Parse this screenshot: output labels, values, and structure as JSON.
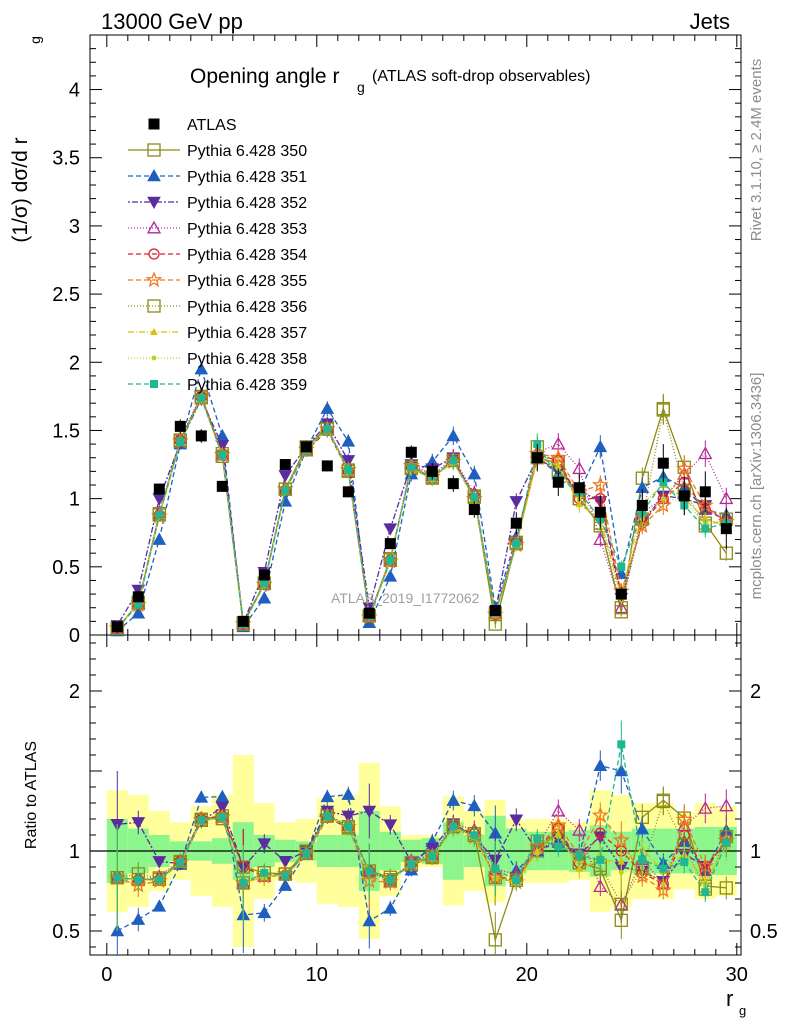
{
  "header": {
    "left": "13000 GeV pp",
    "right": "Jets"
  },
  "side_texts": {
    "rivet": "Rivet 3.1.10, ≥ 2.4M events",
    "mcplots": "mcplots.cern.ch [arXiv:1306.3436]"
  },
  "watermark": "ATLAS_2019_I1772062",
  "chart_data": {
    "type": "scatter",
    "title_main": "Opening angle r",
    "title_sub": "g",
    "title_paren": "(ATLAS soft-drop observables)",
    "ylabel": "(1/σ) dσ/d r",
    "ylabel_sub": "g",
    "ratio_ylabel": "Ratio to ATLAS",
    "xlabel": "r",
    "xlabel_sub": "g",
    "xlim": [
      -0.8,
      30.2
    ],
    "ylim": [
      0,
      4.4
    ],
    "ratio_ylim": [
      0.35,
      2.35
    ],
    "xticks": [
      0,
      10,
      20,
      30
    ],
    "yticks": [
      0,
      0.5,
      1,
      1.5,
      2,
      2.5,
      3,
      3.5,
      4
    ],
    "ytick_labels": [
      "0",
      "0.5",
      "1",
      "1.5",
      "2",
      "2.5",
      "3",
      "3.5",
      "4"
    ],
    "ratio_yticks": [
      0.5,
      1,
      2
    ],
    "ratio_ytick_labels": [
      "0.5",
      "1",
      "2"
    ],
    "legend_position": "top-left",
    "x": [
      0.5,
      1.5,
      2.5,
      3.5,
      4.5,
      5.5,
      6.5,
      7.5,
      8.5,
      9.5,
      10.5,
      11.5,
      12.5,
      13.5,
      14.5,
      15.5,
      16.5,
      17.5,
      18.5,
      19.5,
      20.5,
      21.5,
      22.5,
      23.5,
      24.5,
      25.5,
      26.5,
      27.5,
      28.5,
      29.5
    ],
    "data": {
      "name": "ATLAS",
      "color": "#000000",
      "values": [
        0.06,
        0.28,
        1.07,
        1.53,
        1.46,
        1.09,
        0.1,
        0.44,
        1.25,
        1.38,
        1.24,
        1.05,
        0.16,
        0.67,
        1.34,
        1.2,
        1.11,
        0.92,
        0.18,
        0.82,
        1.3,
        1.12,
        1.08,
        0.9,
        0.3,
        0.95,
        1.26,
        1.02,
        1.05,
        0.78
      ],
      "errors": [
        0.01,
        0.02,
        0.04,
        0.05,
        0.05,
        0.04,
        0.01,
        0.02,
        0.04,
        0.04,
        0.04,
        0.04,
        0.01,
        0.03,
        0.05,
        0.06,
        0.06,
        0.06,
        0.02,
        0.08,
        0.1,
        0.1,
        0.1,
        0.12,
        0.05,
        0.12,
        0.14,
        0.14,
        0.15,
        0.15
      ]
    },
    "bands": {
      "green_half": [
        0.2,
        0.14,
        0.1,
        0.06,
        0.06,
        0.08,
        0.18,
        0.1,
        0.07,
        0.06,
        0.1,
        0.1,
        0.25,
        0.12,
        0.07,
        0.08,
        0.18,
        0.1,
        0.22,
        0.14,
        0.12,
        0.12,
        0.13,
        0.16,
        0.12,
        0.14,
        0.14,
        0.14,
        0.15,
        0.15
      ],
      "yellow_half": [
        0.38,
        0.35,
        0.25,
        0.18,
        0.28,
        0.35,
        0.6,
        0.3,
        0.18,
        0.2,
        0.33,
        0.35,
        0.55,
        0.28,
        0.1,
        0.1,
        0.34,
        0.25,
        0.32,
        0.2,
        0.2,
        0.2,
        0.18,
        0.38,
        0.35,
        0.3,
        0.3,
        0.24,
        0.3,
        0.28
      ]
    },
    "series": [
      {
        "name": "Pythia 6.428 350",
        "color": "#8c8c14",
        "marker": "square-open",
        "dash": "",
        "values": [
          0.05,
          0.23,
          0.88,
          1.42,
          1.75,
          1.33,
          0.09,
          0.38,
          1.07,
          1.38,
          1.52,
          1.2,
          0.14,
          0.56,
          1.22,
          1.15,
          1.28,
          1.02,
          0.08,
          0.68,
          1.3,
          1.26,
          1.0,
          0.8,
          0.17,
          1.15,
          1.66,
          1.23,
          0.82,
          0.6
        ]
      },
      {
        "name": "Pythia 6.428 351",
        "color": "#1f5fbf",
        "marker": "triangle-up",
        "dash": "5,3",
        "values": [
          0.03,
          0.16,
          0.7,
          1.4,
          1.95,
          1.46,
          0.06,
          0.27,
          0.98,
          1.36,
          1.66,
          1.42,
          0.09,
          0.43,
          1.18,
          1.27,
          1.46,
          1.18,
          0.2,
          0.72,
          1.3,
          1.18,
          1.05,
          1.38,
          0.45,
          1.08,
          1.16,
          1.08,
          0.92,
          0.88
        ]
      },
      {
        "name": "Pythia 6.428 352",
        "color": "#5a2ca0",
        "marker": "triangle-down",
        "dash": "2,2,6,2",
        "values": [
          0.07,
          0.33,
          1.0,
          1.41,
          1.73,
          1.39,
          0.09,
          0.46,
          1.17,
          1.38,
          1.55,
          1.28,
          0.2,
          0.78,
          1.25,
          1.22,
          1.3,
          1.0,
          0.17,
          0.98,
          1.3,
          1.2,
          1.06,
          0.98,
          0.27,
          0.83,
          1.02,
          1.0,
          0.95,
          0.82
        ]
      },
      {
        "name": "Pythia 6.428 353",
        "color": "#b3279a",
        "marker": "triangle-up-open",
        "dash": "1,2",
        "values": [
          0.05,
          0.23,
          0.9,
          1.44,
          1.76,
          1.32,
          0.08,
          0.37,
          1.07,
          1.35,
          1.52,
          1.22,
          0.14,
          0.54,
          1.26,
          1.17,
          1.3,
          1.04,
          0.16,
          0.7,
          1.34,
          1.4,
          1.22,
          0.7,
          0.2,
          0.9,
          1.0,
          1.18,
          1.33,
          1.0
        ]
      },
      {
        "name": "Pythia 6.428 354",
        "color": "#e0202a",
        "marker": "circle-open",
        "dash": "5,3",
        "values": [
          0.05,
          0.23,
          0.88,
          1.43,
          1.75,
          1.33,
          0.09,
          0.37,
          1.06,
          1.35,
          1.5,
          1.2,
          0.14,
          0.55,
          1.23,
          1.15,
          1.29,
          1.02,
          0.15,
          0.68,
          1.32,
          1.28,
          1.0,
          1.0,
          0.3,
          0.82,
          1.0,
          1.12,
          0.92,
          0.84
        ]
      },
      {
        "name": "Pythia 6.428 355",
        "color": "#f07820",
        "marker": "star-open",
        "dash": "5,3",
        "values": [
          0.05,
          0.22,
          0.87,
          1.42,
          1.74,
          1.32,
          0.08,
          0.37,
          1.07,
          1.36,
          1.51,
          1.21,
          0.13,
          0.54,
          1.24,
          1.16,
          1.27,
          1.0,
          0.15,
          0.66,
          1.33,
          1.3,
          1.05,
          1.1,
          0.32,
          0.8,
          0.95,
          1.22,
          0.95,
          0.83
        ]
      },
      {
        "name": "Pythia 6.428 356",
        "color": "#8c8c14",
        "marker": "square-open",
        "dash": "1,2",
        "values": [
          0.05,
          0.24,
          0.89,
          1.43,
          1.74,
          1.31,
          0.08,
          0.38,
          1.07,
          1.36,
          1.51,
          1.21,
          0.14,
          0.55,
          1.23,
          1.16,
          1.28,
          1.01,
          0.15,
          0.67,
          1.38,
          1.2,
          1.0,
          0.82,
          0.2,
          0.85,
          1.65,
          1.06,
          0.8,
          0.85
        ]
      },
      {
        "name": "Pythia 6.428 357",
        "color": "#d8c010",
        "marker": "tri-small",
        "dash": "6,2,1,2",
        "values": [
          0.05,
          0.23,
          0.88,
          1.42,
          1.73,
          1.32,
          0.08,
          0.37,
          1.06,
          1.36,
          1.51,
          1.21,
          0.14,
          0.55,
          1.22,
          1.15,
          1.27,
          1.0,
          0.15,
          0.66,
          1.3,
          1.24,
          0.96,
          0.85,
          0.28,
          0.96,
          1.1,
          1.0,
          0.85,
          0.8
        ]
      },
      {
        "name": "Pythia 6.428 358",
        "color": "#c0d020",
        "marker": "dot-small",
        "dash": "1,2",
        "values": [
          0.05,
          0.23,
          0.87,
          1.42,
          1.74,
          1.32,
          0.08,
          0.37,
          1.06,
          1.35,
          1.51,
          1.2,
          0.14,
          0.55,
          1.23,
          1.16,
          1.28,
          1.01,
          0.16,
          0.66,
          1.28,
          1.22,
          1.0,
          0.88,
          0.26,
          0.85,
          1.0,
          0.98,
          0.82,
          0.82
        ]
      },
      {
        "name": "Pythia 6.428 359",
        "color": "#20b890",
        "marker": "square-small",
        "dash": "5,3",
        "values": [
          0.05,
          0.23,
          0.88,
          1.42,
          1.74,
          1.32,
          0.08,
          0.38,
          1.06,
          1.36,
          1.51,
          1.21,
          0.14,
          0.55,
          1.23,
          1.16,
          1.28,
          1.01,
          0.16,
          0.67,
          1.4,
          1.15,
          1.05,
          0.85,
          0.5,
          0.9,
          1.12,
          0.95,
          0.78,
          0.82
        ]
      }
    ]
  }
}
